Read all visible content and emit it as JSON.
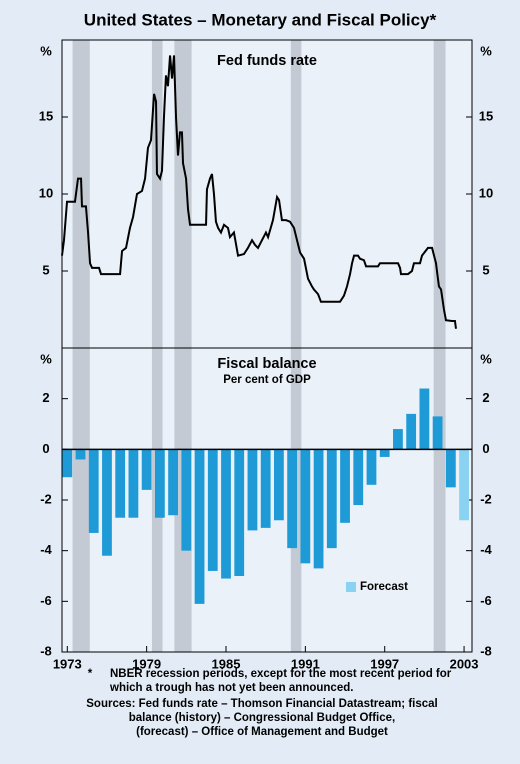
{
  "title": "United States – Monetary and Fiscal Policy*",
  "recessions": [
    {
      "start": 1973.4,
      "end": 1974.7
    },
    {
      "start": 1979.4,
      "end": 1980.2
    },
    {
      "start": 1981.1,
      "end": 1982.4
    },
    {
      "start": 1989.9,
      "end": 1990.7
    },
    {
      "start": 2000.7,
      "end": 2001.6
    }
  ],
  "chart_data": [
    {
      "type": "line",
      "title": "Fed funds rate",
      "y_unit": "%",
      "xlim": [
        1972.6,
        2003.6
      ],
      "ylim": [
        0,
        20
      ],
      "yticks": [
        5,
        10,
        15
      ],
      "series": [
        {
          "color": "#000000",
          "x": [
            1972.6,
            1972.75,
            1972.98,
            1973.58,
            1973.81,
            1974.04,
            1974.11,
            1974.41,
            1974.57,
            1974.72,
            1974.87,
            1975.4,
            1975.55,
            1976.99,
            1977.14,
            1977.44,
            1977.74,
            1977.97,
            1978.27,
            1978.65,
            1978.88,
            1979.1,
            1979.33,
            1979.56,
            1979.71,
            1979.78,
            1980.01,
            1980.16,
            1980.31,
            1980.46,
            1980.61,
            1980.77,
            1980.92,
            1981.07,
            1981.22,
            1981.37,
            1981.52,
            1981.67,
            1981.75,
            1981.98,
            1982.13,
            1982.28,
            1983.49,
            1983.56,
            1983.79,
            1983.94,
            1984.09,
            1984.24,
            1984.4,
            1984.62,
            1984.85,
            1985.15,
            1985.3,
            1985.6,
            1985.91,
            1986.36,
            1986.66,
            1986.97,
            1987.19,
            1987.42,
            1987.72,
            1988.02,
            1988.18,
            1988.55,
            1988.86,
            1989.01,
            1989.23,
            1989.54,
            1989.84,
            1990.14,
            1990.37,
            1990.6,
            1990.9,
            1991.2,
            1991.5,
            1991.65,
            1991.96,
            1992.18,
            1993.62,
            1993.92,
            1994.15,
            1994.38,
            1994.53,
            1994.68,
            1994.98,
            1995.13,
            1995.43,
            1995.59,
            1996.49,
            1996.64,
            1998.01,
            1998.16,
            1998.23,
            1998.76,
            1999.06,
            1999.21,
            1999.67,
            1999.82,
            2000.27,
            2000.58,
            2000.73,
            2000.88,
            2000.95,
            2001.1,
            2001.26,
            2001.48,
            2001.63,
            2002.09,
            2002.31,
            2002.39
          ],
          "values": [
            6.0,
            7.0,
            9.5,
            9.5,
            11.0,
            11.0,
            9.2,
            9.2,
            7.5,
            5.5,
            5.2,
            5.2,
            4.8,
            4.8,
            6.3,
            6.5,
            7.8,
            8.5,
            10.0,
            10.2,
            11.0,
            13.0,
            13.5,
            16.5,
            16.0,
            11.3,
            11.0,
            11.5,
            15.0,
            17.7,
            17.0,
            19.0,
            17.5,
            19.0,
            15.0,
            12.5,
            14.0,
            14.0,
            12.0,
            11.0,
            9.0,
            8.0,
            8.0,
            10.3,
            11.0,
            11.3,
            10.0,
            8.2,
            7.8,
            7.5,
            8.0,
            7.8,
            7.2,
            7.5,
            6.0,
            6.1,
            6.5,
            7.0,
            6.7,
            6.5,
            7.0,
            7.5,
            7.2,
            8.3,
            9.8,
            9.6,
            8.3,
            8.3,
            8.2,
            7.8,
            7.0,
            6.2,
            5.8,
            4.5,
            4.0,
            3.8,
            3.5,
            3.0,
            3.0,
            3.4,
            4.0,
            4.8,
            5.5,
            6.0,
            6.0,
            5.8,
            5.7,
            5.3,
            5.3,
            5.5,
            5.5,
            5.2,
            4.8,
            4.8,
            5.0,
            5.5,
            5.5,
            6.0,
            6.5,
            6.5,
            6.0,
            5.5,
            5.0,
            4.0,
            3.8,
            2.5,
            1.8,
            1.75,
            1.75,
            1.25
          ]
        }
      ]
    },
    {
      "type": "bar",
      "title": "Fiscal balance",
      "subtitle": "Per cent of GDP",
      "y_unit": "%",
      "xlim": [
        1972.6,
        2003.6
      ],
      "xticks": [
        1973,
        1979,
        1985,
        1991,
        1997,
        2003
      ],
      "ylim": [
        -8,
        4
      ],
      "yticks": [
        -8,
        -6,
        -4,
        -2,
        0,
        2
      ],
      "legend": "bottom right",
      "series": [
        {
          "color": "#1e9ad6",
          "x": [
            1973,
            1974,
            1975,
            1976,
            1977,
            1978,
            1979,
            1980,
            1981,
            1982,
            1983,
            1984,
            1985,
            1986,
            1987,
            1988,
            1989,
            1990,
            1991,
            1992,
            1993,
            1994,
            1995,
            1996,
            1997,
            1998,
            1999,
            2000,
            2001,
            2002
          ],
          "values": [
            -1.1,
            -0.4,
            -3.3,
            -4.2,
            -2.7,
            -2.7,
            -1.6,
            -2.7,
            -2.6,
            -4.0,
            -6.1,
            -4.8,
            -5.1,
            -5.0,
            -3.2,
            -3.1,
            -2.8,
            -3.9,
            -4.5,
            -4.7,
            -3.9,
            -2.9,
            -2.2,
            -1.4,
            -0.3,
            0.8,
            1.4,
            2.4,
            1.3,
            -1.5
          ]
        },
        {
          "name": "Forecast",
          "color": "#8ad2f2",
          "x": [
            2003
          ],
          "values": [
            -2.8
          ]
        }
      ]
    }
  ],
  "notes": {
    "marker": "*",
    "lines": [
      "NBER recession periods, except for the most recent period for",
      "which a trough has not yet been announced."
    ]
  },
  "sources": [
    "Sources: Fed funds rate – Thomson Financial Datastream; fiscal",
    "balance (history) – Congressional Budget Office,",
    "(forecast) – Office of Management and Budget"
  ]
}
